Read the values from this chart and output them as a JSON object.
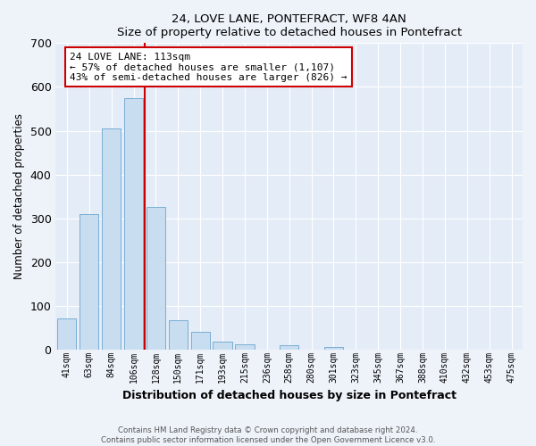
{
  "title": "24, LOVE LANE, PONTEFRACT, WF8 4AN",
  "subtitle": "Size of property relative to detached houses in Pontefract",
  "xlabel": "Distribution of detached houses by size in Pontefract",
  "ylabel": "Number of detached properties",
  "bar_labels": [
    "41sqm",
    "63sqm",
    "84sqm",
    "106sqm",
    "128sqm",
    "150sqm",
    "171sqm",
    "193sqm",
    "215sqm",
    "236sqm",
    "258sqm",
    "280sqm",
    "301sqm",
    "323sqm",
    "345sqm",
    "367sqm",
    "388sqm",
    "410sqm",
    "432sqm",
    "453sqm",
    "475sqm"
  ],
  "bar_values": [
    72,
    310,
    505,
    575,
    325,
    67,
    40,
    18,
    13,
    0,
    11,
    0,
    6,
    0,
    0,
    0,
    0,
    0,
    0,
    0,
    0
  ],
  "bar_color": "#c8ddf0",
  "bar_edge_color": "#7aaed4",
  "ylim": [
    0,
    700
  ],
  "yticks": [
    0,
    100,
    200,
    300,
    400,
    500,
    600,
    700
  ],
  "vline_color": "#cc0000",
  "annotation_title": "24 LOVE LANE: 113sqm",
  "annotation_line1": "← 57% of detached houses are smaller (1,107)",
  "annotation_line2": "43% of semi-detached houses are larger (826) →",
  "footer1": "Contains HM Land Registry data © Crown copyright and database right 2024.",
  "footer2": "Contains public sector information licensed under the Open Government Licence v3.0.",
  "background_color": "#eef3fa",
  "plot_background": "#e4edf7"
}
